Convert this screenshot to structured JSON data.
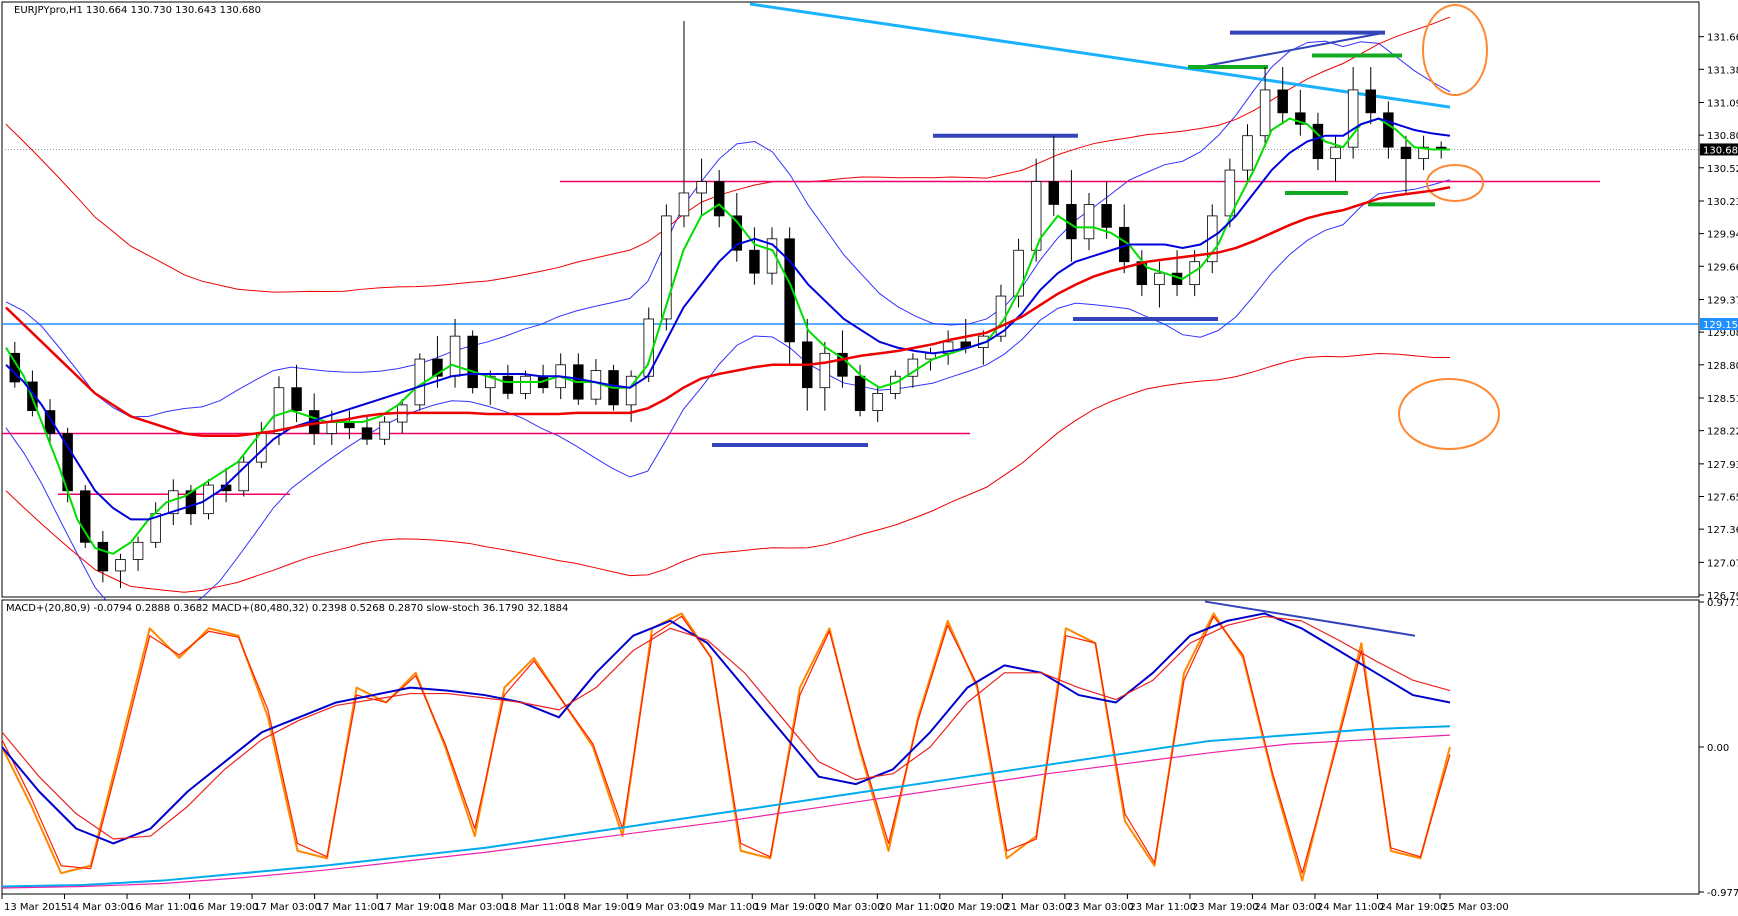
{
  "chart_data": [
    {
      "type": "candlestick",
      "panel": "price",
      "header": "EURJPYpro,H1  130.664 130.730 130.643 130.680",
      "ylim": [
        126.79,
        131.95
      ],
      "y_ticks": [
        "131.665",
        "131.380",
        "131.090",
        "130.805",
        "130.520",
        "130.230",
        "129.945",
        "129.660",
        "129.370",
        "129.085",
        "128.800",
        "128.510",
        "128.225",
        "127.935",
        "127.650",
        "127.365",
        "127.075",
        "126.790"
      ],
      "current_price": "130.680",
      "hline_label": "129.156",
      "hline_value": 129.156,
      "colors": {
        "up_body": "#ffffff",
        "down_body": "#000000",
        "wick": "#000000",
        "green_ma": "#00dd00",
        "blue_ma": "#0000dd",
        "red_ma": "#ee0000",
        "bb_outer": "#ee0000",
        "bb_inner": "#3333ff",
        "trend": "#1ab2ff",
        "support": "#ee0066",
        "zone_blue": "#3344bb",
        "zone_green": "#11aa22",
        "circle": "#ff8833"
      },
      "x_range": [
        0,
        260
      ],
      "candles": [
        [
          128.9,
          129.0,
          128.6,
          128.65
        ],
        [
          128.65,
          128.75,
          128.35,
          128.4
        ],
        [
          128.4,
          128.5,
          128.1,
          128.2
        ],
        [
          128.2,
          128.25,
          127.6,
          127.7
        ],
        [
          127.7,
          127.75,
          127.2,
          127.25
        ],
        [
          127.25,
          127.35,
          126.9,
          127.0
        ],
        [
          127.0,
          127.15,
          126.85,
          127.1
        ],
        [
          127.1,
          127.3,
          127.0,
          127.25
        ],
        [
          127.25,
          127.6,
          127.2,
          127.5
        ],
        [
          127.5,
          127.8,
          127.4,
          127.7
        ],
        [
          127.7,
          127.75,
          127.4,
          127.5
        ],
        [
          127.5,
          127.8,
          127.45,
          127.75
        ],
        [
          127.75,
          127.9,
          127.6,
          127.7
        ],
        [
          127.7,
          128.0,
          127.65,
          127.95
        ],
        [
          127.95,
          128.3,
          127.9,
          128.2
        ],
        [
          128.2,
          128.7,
          128.1,
          128.6
        ],
        [
          128.6,
          128.8,
          128.3,
          128.4
        ],
        [
          128.4,
          128.55,
          128.1,
          128.2
        ],
        [
          128.2,
          128.4,
          128.1,
          128.3
        ],
        [
          128.3,
          128.4,
          128.15,
          128.25
        ],
        [
          128.25,
          128.35,
          128.1,
          128.15
        ],
        [
          128.15,
          128.35,
          128.1,
          128.3
        ],
        [
          128.3,
          128.5,
          128.2,
          128.45
        ],
        [
          128.45,
          128.9,
          128.4,
          128.85
        ],
        [
          128.85,
          129.05,
          128.6,
          128.7
        ],
        [
          128.7,
          129.2,
          128.6,
          129.05
        ],
        [
          129.05,
          129.1,
          128.55,
          128.6
        ],
        [
          128.6,
          128.75,
          128.45,
          128.7
        ],
        [
          128.7,
          128.8,
          128.5,
          128.55
        ],
        [
          128.55,
          128.75,
          128.5,
          128.7
        ],
        [
          128.7,
          128.8,
          128.55,
          128.6
        ],
        [
          128.6,
          128.9,
          128.5,
          128.8
        ],
        [
          128.8,
          128.9,
          128.45,
          128.5
        ],
        [
          128.5,
          128.85,
          128.45,
          128.75
        ],
        [
          128.75,
          128.8,
          128.4,
          128.45
        ],
        [
          128.45,
          128.75,
          128.3,
          128.7
        ],
        [
          128.7,
          129.3,
          128.65,
          129.2
        ],
        [
          129.2,
          130.2,
          129.1,
          130.1
        ],
        [
          130.1,
          131.8,
          130.0,
          130.3
        ],
        [
          130.3,
          130.6,
          130.1,
          130.4
        ],
        [
          130.4,
          130.5,
          130.0,
          130.1
        ],
        [
          130.1,
          130.3,
          129.7,
          129.8
        ],
        [
          129.8,
          130.0,
          129.5,
          129.6
        ],
        [
          129.6,
          130.0,
          129.5,
          129.9
        ],
        [
          129.9,
          130.0,
          128.8,
          129.0
        ],
        [
          129.0,
          129.2,
          128.4,
          128.6
        ],
        [
          128.6,
          129.0,
          128.4,
          128.9
        ],
        [
          128.9,
          129.1,
          128.6,
          128.7
        ],
        [
          128.7,
          128.8,
          128.35,
          128.4
        ],
        [
          128.4,
          128.6,
          128.3,
          128.55
        ],
        [
          128.55,
          128.75,
          128.5,
          128.7
        ],
        [
          128.7,
          128.9,
          128.6,
          128.85
        ],
        [
          128.85,
          128.95,
          128.75,
          128.9
        ],
        [
          128.9,
          129.1,
          128.8,
          129.0
        ],
        [
          129.0,
          129.2,
          128.9,
          128.95
        ],
        [
          128.95,
          129.1,
          128.8,
          129.05
        ],
        [
          129.05,
          129.5,
          129.0,
          129.4
        ],
        [
          129.4,
          129.9,
          129.3,
          129.8
        ],
        [
          129.8,
          130.6,
          129.7,
          130.4
        ],
        [
          130.4,
          130.8,
          130.1,
          130.2
        ],
        [
          130.2,
          130.5,
          129.7,
          129.9
        ],
        [
          129.9,
          130.3,
          129.8,
          130.2
        ],
        [
          130.2,
          130.4,
          129.9,
          130.0
        ],
        [
          130.0,
          130.2,
          129.6,
          129.7
        ],
        [
          129.7,
          129.8,
          129.4,
          129.5
        ],
        [
          129.5,
          129.7,
          129.3,
          129.6
        ],
        [
          129.6,
          129.8,
          129.4,
          129.5
        ],
        [
          129.5,
          129.8,
          129.4,
          129.7
        ],
        [
          129.7,
          130.2,
          129.6,
          130.1
        ],
        [
          130.1,
          130.6,
          130.0,
          130.5
        ],
        [
          130.5,
          130.9,
          130.4,
          130.8
        ],
        [
          130.8,
          131.4,
          130.7,
          131.2
        ],
        [
          131.2,
          131.4,
          130.9,
          131.0
        ],
        [
          131.0,
          131.2,
          130.8,
          130.9
        ],
        [
          130.9,
          131.0,
          130.5,
          130.6
        ],
        [
          130.6,
          130.8,
          130.4,
          130.7
        ],
        [
          130.7,
          131.4,
          130.6,
          131.2
        ],
        [
          131.2,
          131.4,
          130.9,
          131.0
        ],
        [
          131.0,
          131.1,
          130.6,
          130.7
        ],
        [
          130.7,
          130.8,
          130.3,
          130.6
        ],
        [
          130.6,
          130.8,
          130.5,
          130.7
        ],
        [
          130.7,
          130.75,
          130.6,
          130.68
        ]
      ],
      "series": [
        {
          "key": "green_ma",
          "values": [
            128.95,
            128.7,
            128.3,
            127.9,
            127.45,
            127.2,
            127.15,
            127.25,
            127.45,
            127.6,
            127.65,
            127.75,
            127.85,
            127.95,
            128.15,
            128.35,
            128.4,
            128.35,
            128.3,
            128.3,
            128.3,
            128.35,
            128.45,
            128.6,
            128.7,
            128.8,
            128.75,
            128.7,
            128.65,
            128.65,
            128.65,
            128.7,
            128.65,
            128.65,
            128.6,
            128.6,
            128.8,
            129.3,
            129.8,
            130.1,
            130.2,
            130.05,
            129.85,
            129.8,
            129.5,
            129.1,
            128.95,
            128.85,
            128.7,
            128.6,
            128.65,
            128.75,
            128.85,
            128.9,
            128.95,
            129.0,
            129.2,
            129.5,
            129.9,
            130.1,
            130.0,
            130.0,
            129.95,
            129.85,
            129.65,
            129.6,
            129.55,
            129.65,
            129.85,
            130.2,
            130.5,
            130.85,
            130.95,
            130.9,
            130.75,
            130.7,
            130.9,
            130.95,
            130.85,
            130.7,
            130.68,
            130.68
          ]
        },
        {
          "key": "blue_ma",
          "values": [
            128.8,
            128.65,
            128.45,
            128.2,
            127.95,
            127.7,
            127.55,
            127.45,
            127.45,
            127.5,
            127.55,
            127.6,
            127.7,
            127.85,
            128.0,
            128.15,
            128.25,
            128.3,
            128.35,
            128.4,
            128.45,
            128.5,
            128.55,
            128.6,
            128.65,
            128.7,
            128.72,
            128.72,
            128.72,
            128.72,
            128.7,
            128.7,
            128.68,
            128.65,
            128.62,
            128.6,
            128.7,
            129.0,
            129.3,
            129.5,
            129.7,
            129.85,
            129.9,
            129.85,
            129.7,
            129.5,
            129.35,
            129.2,
            129.1,
            129.0,
            128.95,
            128.92,
            128.9,
            128.92,
            128.95,
            129.0,
            129.1,
            129.25,
            129.45,
            129.6,
            129.7,
            129.75,
            129.8,
            129.85,
            129.85,
            129.85,
            129.82,
            129.85,
            129.95,
            130.1,
            130.3,
            130.5,
            130.65,
            130.75,
            130.8,
            130.8,
            130.9,
            130.95,
            130.9,
            130.85,
            130.82,
            130.8
          ]
        },
        {
          "key": "red_ma",
          "values": [
            129.3,
            129.15,
            129.0,
            128.85,
            128.7,
            128.55,
            128.45,
            128.35,
            128.3,
            128.25,
            128.2,
            128.18,
            128.18,
            128.18,
            128.2,
            128.22,
            128.25,
            128.28,
            128.3,
            128.32,
            128.35,
            128.37,
            128.38,
            128.38,
            128.38,
            128.38,
            128.38,
            128.37,
            128.37,
            128.37,
            128.37,
            128.37,
            128.38,
            128.38,
            128.38,
            128.38,
            128.42,
            128.5,
            128.6,
            128.68,
            128.72,
            128.75,
            128.78,
            128.8,
            128.8,
            128.8,
            128.82,
            128.85,
            128.88,
            128.9,
            128.92,
            128.95,
            128.98,
            129.02,
            129.05,
            129.08,
            129.15,
            129.22,
            129.32,
            129.42,
            129.5,
            129.57,
            129.62,
            129.66,
            129.7,
            129.72,
            129.74,
            129.76,
            129.78,
            129.82,
            129.88,
            129.95,
            130.02,
            130.08,
            130.12,
            130.15,
            130.2,
            130.25,
            130.28,
            130.3,
            130.32,
            130.35
          ]
        }
      ],
      "annotations": {
        "support_lines": [
          130.4,
          128.2,
          127.67
        ],
        "blue_zones": [
          131.7,
          130.8,
          129.2,
          128.1
        ],
        "green_zones": [
          131.4,
          131.5,
          130.3,
          130.2
        ]
      }
    },
    {
      "type": "line",
      "panel": "indicator",
      "header": "MACD+(20,80,9) -0.0794 0.2888 0.3682  MACD+(80,480,32) 0.2398 0.5268 0.2870  slow-stoch 36.1790 32.1884",
      "y_ticks": [
        "0.9771",
        "0.00",
        "-0.9771"
      ],
      "ylim": [
        -0.9771,
        0.9771
      ],
      "x_range": [
        0,
        260
      ],
      "series": [
        {
          "key": "stoch",
          "color": "#ff8800",
          "values": [
            0.0,
            -0.4,
            -0.85,
            -0.8,
            0.0,
            0.8,
            0.6,
            0.8,
            0.75,
            0.2,
            -0.7,
            -0.75,
            0.4,
            0.3,
            0.5,
            0.0,
            -0.6,
            0.4,
            0.6,
            0.3,
            0.0,
            -0.6,
            0.8,
            0.9,
            0.6,
            -0.7,
            -0.75,
            0.4,
            0.8,
            0.0,
            -0.7,
            0.2,
            0.85,
            0.4,
            -0.75,
            -0.6,
            0.8,
            0.7,
            -0.5,
            -0.8,
            0.5,
            0.9,
            0.6,
            -0.2,
            -0.9,
            -0.1,
            0.7,
            -0.7,
            -0.75,
            0.0
          ]
        },
        {
          "key": "stoch_sig",
          "color": "#ff2200",
          "values": [
            0.05,
            -0.35,
            -0.8,
            -0.82,
            -0.05,
            0.75,
            0.62,
            0.78,
            0.74,
            0.25,
            -0.65,
            -0.74,
            0.35,
            0.3,
            0.48,
            0.02,
            -0.55,
            0.35,
            0.58,
            0.3,
            0.02,
            -0.55,
            0.75,
            0.88,
            0.6,
            -0.65,
            -0.74,
            0.35,
            0.78,
            0.02,
            -0.65,
            0.18,
            0.82,
            0.42,
            -0.7,
            -0.62,
            0.75,
            0.7,
            -0.45,
            -0.78,
            0.45,
            0.88,
            0.62,
            -0.18,
            -0.85,
            -0.12,
            0.65,
            -0.68,
            -0.74,
            -0.05
          ]
        },
        {
          "key": "macd_fast",
          "color": "#0000cc",
          "values": [
            0.0,
            -0.3,
            -0.55,
            -0.65,
            -0.55,
            -0.3,
            -0.1,
            0.1,
            0.2,
            0.3,
            0.35,
            0.4,
            0.38,
            0.35,
            0.3,
            0.2,
            0.5,
            0.75,
            0.85,
            0.7,
            0.4,
            0.1,
            -0.2,
            -0.25,
            -0.15,
            0.1,
            0.4,
            0.55,
            0.5,
            0.35,
            0.3,
            0.5,
            0.75,
            0.85,
            0.9,
            0.8,
            0.65,
            0.5,
            0.35,
            0.3
          ]
        },
        {
          "key": "macd_slow_sig",
          "color": "#ee2222",
          "values": [
            0.1,
            -0.2,
            -0.45,
            -0.62,
            -0.6,
            -0.4,
            -0.15,
            0.05,
            0.18,
            0.28,
            0.32,
            0.36,
            0.36,
            0.33,
            0.3,
            0.25,
            0.4,
            0.65,
            0.8,
            0.72,
            0.5,
            0.2,
            -0.1,
            -0.22,
            -0.18,
            0.0,
            0.3,
            0.5,
            0.5,
            0.4,
            0.32,
            0.45,
            0.7,
            0.82,
            0.88,
            0.85,
            0.72,
            0.58,
            0.45,
            0.38
          ]
        },
        {
          "key": "macd_long",
          "color": "#00aaee",
          "values": [
            -0.94,
            -0.93,
            -0.9,
            -0.85,
            -0.8,
            -0.74,
            -0.68,
            -0.6,
            -0.52,
            -0.44,
            -0.36,
            -0.28,
            -0.2,
            -0.12,
            -0.04,
            0.04,
            0.08,
            0.12,
            0.14
          ]
        },
        {
          "key": "macd_long_sig",
          "color": "#ee22aa",
          "values": [
            -0.95,
            -0.94,
            -0.92,
            -0.88,
            -0.83,
            -0.77,
            -0.71,
            -0.64,
            -0.57,
            -0.5,
            -0.42,
            -0.34,
            -0.26,
            -0.18,
            -0.11,
            -0.04,
            0.02,
            0.05,
            0.08
          ]
        }
      ]
    }
  ],
  "x_ticks": [
    "13 Mar 2015",
    "14 Mar 03:00",
    "16 Mar 11:00",
    "16 Mar 19:00",
    "17 Mar 03:00",
    "17 Mar 11:00",
    "17 Mar 19:00",
    "18 Mar 03:00",
    "18 Mar 11:00",
    "18 Mar 19:00",
    "19 Mar 03:00",
    "19 Mar 11:00",
    "19 Mar 19:00",
    "20 Mar 03:00",
    "20 Mar 11:00",
    "20 Mar 19:00",
    "21 Mar 03:00",
    "23 Mar 03:00",
    "23 Mar 11:00",
    "23 Mar 19:00",
    "24 Mar 03:00",
    "24 Mar 11:00",
    "24 Mar 19:00",
    "25 Mar 03:00"
  ]
}
